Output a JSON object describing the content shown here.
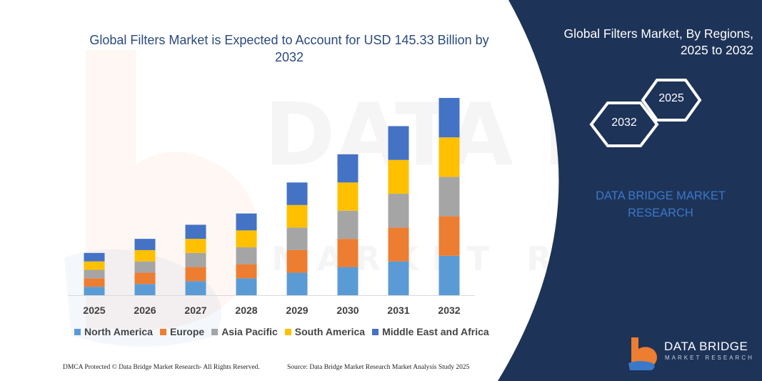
{
  "chart_data": {
    "type": "bar",
    "stacked": true,
    "title": "Global Filters Market is Expected to Account for USD 145.33 Billion by 2032",
    "categories": [
      "2025",
      "2026",
      "2027",
      "2028",
      "2029",
      "2030",
      "2031",
      "2032"
    ],
    "series": [
      {
        "name": "North America",
        "color": "#5b9bd5",
        "values": [
          12,
          16,
          20,
          24,
          32,
          40,
          48,
          56
        ]
      },
      {
        "name": "Europe",
        "color": "#ed7d31",
        "values": [
          12,
          16,
          20,
          20,
          32,
          40,
          48,
          56
        ]
      },
      {
        "name": "Asia Pacific",
        "color": "#a5a5a5",
        "values": [
          12,
          16,
          20,
          24,
          32,
          40,
          48,
          56
        ]
      },
      {
        "name": "South America",
        "color": "#ffc000",
        "values": [
          12,
          16,
          20,
          24,
          32,
          40,
          48,
          56
        ]
      },
      {
        "name": "Middle East and Africa",
        "color": "#4472c4",
        "values": [
          12,
          16,
          20,
          24,
          32,
          40,
          48,
          56
        ]
      }
    ],
    "legend_position": "bottom",
    "grid": false
  },
  "right_panel": {
    "title": "Global Filters Market, By Regions, 2025 to 2032",
    "hex_front": "2032",
    "hex_back": "2025",
    "brand": "DATA BRIDGE MARKET RESEARCH",
    "colors": {
      "panel": "#1e3358",
      "accent": "#3b78c9"
    }
  },
  "logo": {
    "line1": "DATA BRIDGE",
    "line2": "MARKET RESEARCH"
  },
  "footer": {
    "left": "DMCA Protected © Data Bridge Market Research- All Rights Reserved.",
    "right": "Source: Data Bridge Market Research Market Analysis Study 2025"
  },
  "watermark": {
    "line1": "DATA BRIDGE",
    "line2": "MARKET RESEARCH"
  }
}
